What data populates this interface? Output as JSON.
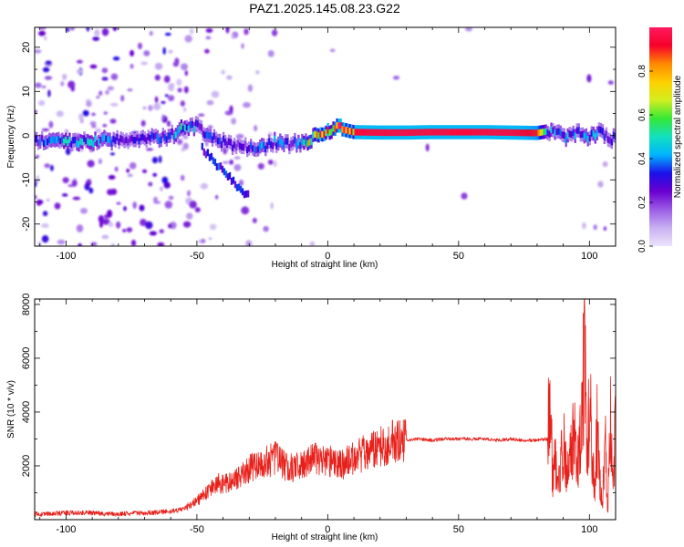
{
  "figure_title": "PAZ1.2025.145.08.23.G22",
  "colors": {
    "snr_line": "#e8201a",
    "colormap": [
      "#ece4fb",
      "#c9b1f2",
      "#9b5ce6",
      "#6a00d0",
      "#1a10e8",
      "#00b4ff",
      "#12e0c0",
      "#35e835",
      "#d2ee20",
      "#ffd000",
      "#ff8a00",
      "#f6002a",
      "#ff1a5e"
    ]
  },
  "chart_data": [
    {
      "type": "heatmap",
      "title": "",
      "xlabel": "Height of straight line (km)",
      "ylabel": "Frequency (Hz)",
      "xlim": [
        -112,
        110
      ],
      "ylim": [
        -25,
        24.5
      ],
      "xticks": [
        -100,
        -50,
        0,
        50,
        100
      ],
      "yticks": [
        -20,
        -10,
        0,
        10,
        20
      ],
      "colorbar": {
        "label": "Normalized spectral amplitude",
        "range": [
          0,
          1
        ],
        "ticks": [
          0.0,
          0.2,
          0.4,
          0.6,
          0.8
        ]
      },
      "ridge": {
        "x": [
          -112,
          -100,
          -90,
          -80,
          -70,
          -60,
          -55,
          -50,
          -45,
          -40,
          -35,
          -30,
          -25,
          -20,
          -15,
          -10,
          -5,
          0,
          3,
          5,
          10,
          20,
          30,
          40,
          50,
          60,
          70,
          80,
          84,
          88,
          92,
          96,
          100,
          104,
          108,
          110
        ],
        "freq": [
          -1.0,
          -1.5,
          -1.2,
          -1.0,
          -0.8,
          -0.2,
          2.5,
          2.0,
          -0.5,
          -1.5,
          -2.5,
          -2.5,
          -2.5,
          -1.5,
          -2.0,
          -1.5,
          -0.5,
          0.5,
          2.0,
          1.5,
          0.8,
          0.7,
          0.7,
          0.8,
          0.8,
          0.8,
          0.7,
          0.6,
          1.0,
          0.2,
          -0.3,
          1.0,
          -0.5,
          1.0,
          -0.8,
          -0.5
        ],
        "amplitude": [
          0.3,
          0.45,
          0.45,
          0.3,
          0.3,
          0.4,
          0.5,
          0.35,
          0.35,
          0.3,
          0.3,
          0.3,
          0.4,
          0.4,
          0.3,
          0.5,
          0.8,
          0.9,
          0.95,
          1.0,
          0.95,
          0.95,
          0.95,
          0.95,
          0.95,
          0.95,
          0.95,
          0.9,
          0.4,
          0.4,
          0.4,
          0.4,
          0.4,
          0.4,
          0.3,
          0.3
        ]
      },
      "secondary_ridge": {
        "x": [
          -48,
          -45,
          -40,
          -35,
          -30
        ],
        "freq": [
          -3,
          -5,
          -8,
          -11,
          -14
        ],
        "amplitude": [
          0.3,
          0.3,
          0.35,
          0.3,
          0.3
        ]
      }
    },
    {
      "type": "line",
      "title": "",
      "xlabel": "Height of straight line (km)",
      "ylabel": "SNR (10 * v/v)",
      "xlim": [
        -112,
        110
      ],
      "ylim": [
        0,
        8200
      ],
      "xticks": [
        -100,
        -50,
        0,
        50,
        100
      ],
      "yticks": [
        2000,
        4000,
        6000,
        8000
      ],
      "series": [
        {
          "x": [
            -112,
            -100,
            -90,
            -80,
            -70,
            -60,
            -55,
            -50,
            -45,
            -42,
            -40,
            -35,
            -30,
            -25,
            -22,
            -20,
            -15,
            -10,
            -5,
            0,
            5,
            10,
            15,
            20,
            25,
            30,
            35,
            40,
            45,
            50,
            55,
            60,
            65,
            70,
            75,
            80,
            84,
            85,
            86,
            87,
            88,
            90,
            92,
            94,
            95,
            96,
            97,
            98,
            99,
            100,
            101,
            102,
            103,
            104,
            105,
            106,
            107,
            108,
            109,
            110
          ],
          "y": [
            200,
            250,
            250,
            200,
            250,
            300,
            400,
            700,
            1100,
            1400,
            1300,
            1500,
            1900,
            2100,
            2200,
            2300,
            1900,
            2000,
            2300,
            2200,
            2000,
            2300,
            2500,
            2700,
            2900,
            2950,
            3000,
            2950,
            3000,
            3000,
            3000,
            3000,
            2950,
            3000,
            2950,
            2950,
            3000,
            4500,
            1500,
            2500,
            1000,
            3000,
            1500,
            3500,
            2000,
            2500,
            4000,
            6200,
            2500,
            3800,
            2000,
            1200,
            3500,
            1500,
            600,
            3000,
            400,
            4000,
            1000,
            3500
          ]
        }
      ]
    }
  ]
}
